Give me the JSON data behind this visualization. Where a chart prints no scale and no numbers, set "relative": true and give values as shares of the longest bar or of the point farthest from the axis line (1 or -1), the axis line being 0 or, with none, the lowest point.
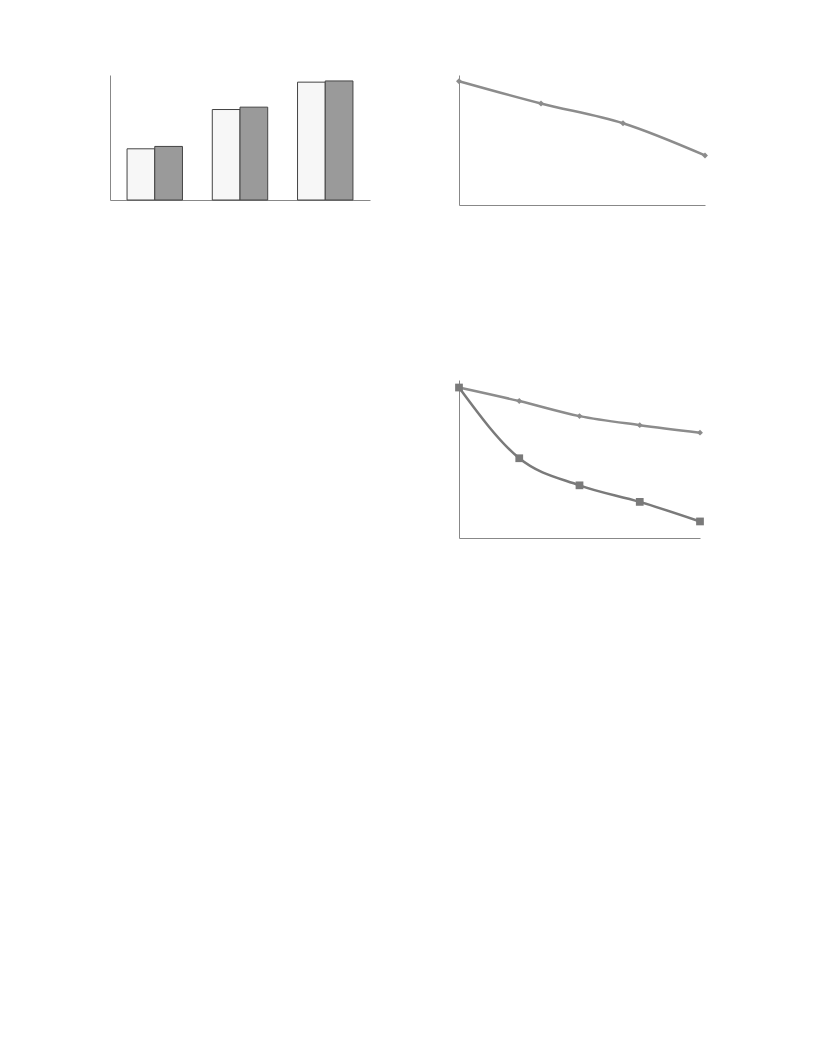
{
  "chart_data": [
    {
      "type": "bar",
      "relative": true,
      "categories": [
        null,
        null,
        null
      ],
      "tick_labels": false,
      "series": [
        {
          "color": "#f7f7f7",
          "values": [
            0.43,
            0.76,
            0.99
          ]
        },
        {
          "color": "#9a9a9a",
          "values": [
            0.45,
            0.78,
            1
          ]
        }
      ]
    },
    {
      "type": "line",
      "relative": true,
      "categories": [
        null,
        null,
        null,
        null
      ],
      "tick_labels": false,
      "marker": "diamond",
      "series": [
        {
          "color": "#8c8c8c",
          "values": [
            1,
            0.82,
            0.66,
            0.4
          ]
        }
      ]
    },
    {
      "type": "line",
      "relative": true,
      "categories": [
        null,
        null,
        null,
        null,
        null
      ],
      "tick_labels": false,
      "series": [
        {
          "color": "#8c8c8c",
          "marker": "diamond",
          "values": [
            1,
            0.91,
            0.81,
            0.75,
            0.7
          ]
        },
        {
          "color": "#7a7a7a",
          "marker": "square",
          "values": [
            1,
            0.53,
            0.35,
            0.24,
            0.11
          ]
        }
      ]
    }
  ]
}
